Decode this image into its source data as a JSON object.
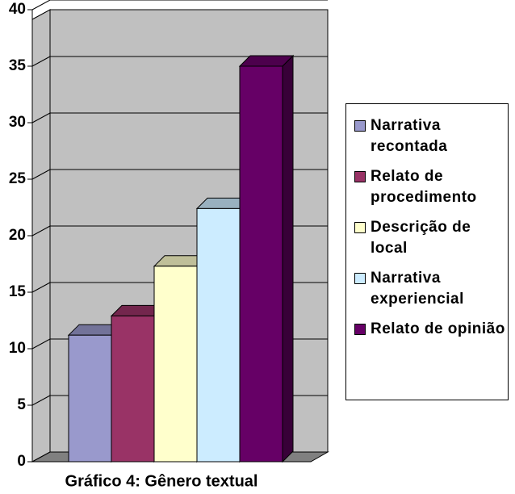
{
  "chart_data": {
    "type": "bar3d",
    "title": "Gráfico 4: Gênero textual",
    "series": [
      {
        "name": "Narrativa recontada",
        "color": "#9999cc",
        "values": [
          11.2
        ]
      },
      {
        "name": "Relato de procedimento",
        "color": "#993366",
        "values": [
          12.9
        ]
      },
      {
        "name": "Descrição de local",
        "color": "#ffffcc",
        "values": [
          17.3
        ]
      },
      {
        "name": "Narrativa experiencial",
        "color": "#ccecff",
        "values": [
          22.4
        ]
      },
      {
        "name": "Relato de opinião",
        "color": "#660066",
        "values": [
          35
        ]
      }
    ],
    "ylim": [
      0,
      40
    ],
    "yticks": [
      0,
      5,
      10,
      15,
      20,
      25,
      30,
      35,
      40
    ],
    "grid": true,
    "legend": "right"
  }
}
